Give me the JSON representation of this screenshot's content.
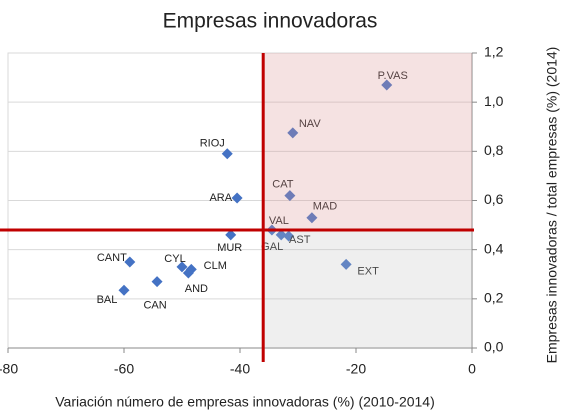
{
  "chart_data": {
    "type": "scatter",
    "title": "Empresas innovadoras",
    "x_label": "Variación número de empresas innovadoras (%) (2010-2014)",
    "y_label": "Empresas innovadoras / total empresas (%) (2014)",
    "labels": [
      "P.VAS",
      "NAV",
      "RIOJ",
      "CAT",
      "ARA",
      "MAD",
      "VAL",
      "MUR",
      "GAL",
      "AST",
      "EXT",
      "CANT",
      "CYL",
      "CLM",
      "AND",
      "CAN",
      "BAL"
    ],
    "x": [
      -14.7,
      -30.9,
      -42.2,
      -31.4,
      -40.5,
      -27.6,
      -34.5,
      -41.6,
      -32.9,
      -31.6,
      -21.7,
      -59.0,
      -50.0,
      -48.4,
      -48.9,
      -54.3,
      -60.0
    ],
    "values": [
      1.07,
      0.875,
      0.79,
      0.62,
      0.61,
      0.53,
      0.48,
      0.46,
      0.46,
      0.455,
      0.34,
      0.35,
      0.33,
      0.32,
      0.305,
      0.27,
      0.235
    ],
    "color": "#4472c4",
    "reference_x": -36.0,
    "reference_y": 0.48,
    "reference_color": "#c00000",
    "xlim": [
      -80,
      0
    ],
    "xticks": [
      -80,
      -60,
      -40,
      -20,
      0
    ],
    "ylim": [
      0,
      1.2
    ],
    "yticks": [
      {
        "value": 0,
        "label": "0,0"
      },
      {
        "value": 0.2,
        "label": "0,2"
      },
      {
        "value": 0.4,
        "label": "0,4"
      },
      {
        "value": 0.6,
        "label": "0,6"
      },
      {
        "value": 0.8,
        "label": "0,8"
      },
      {
        "value": 1.0,
        "label": "1,0"
      },
      {
        "value": 1.2,
        "label": "1,2"
      }
    ],
    "grid": true
  }
}
